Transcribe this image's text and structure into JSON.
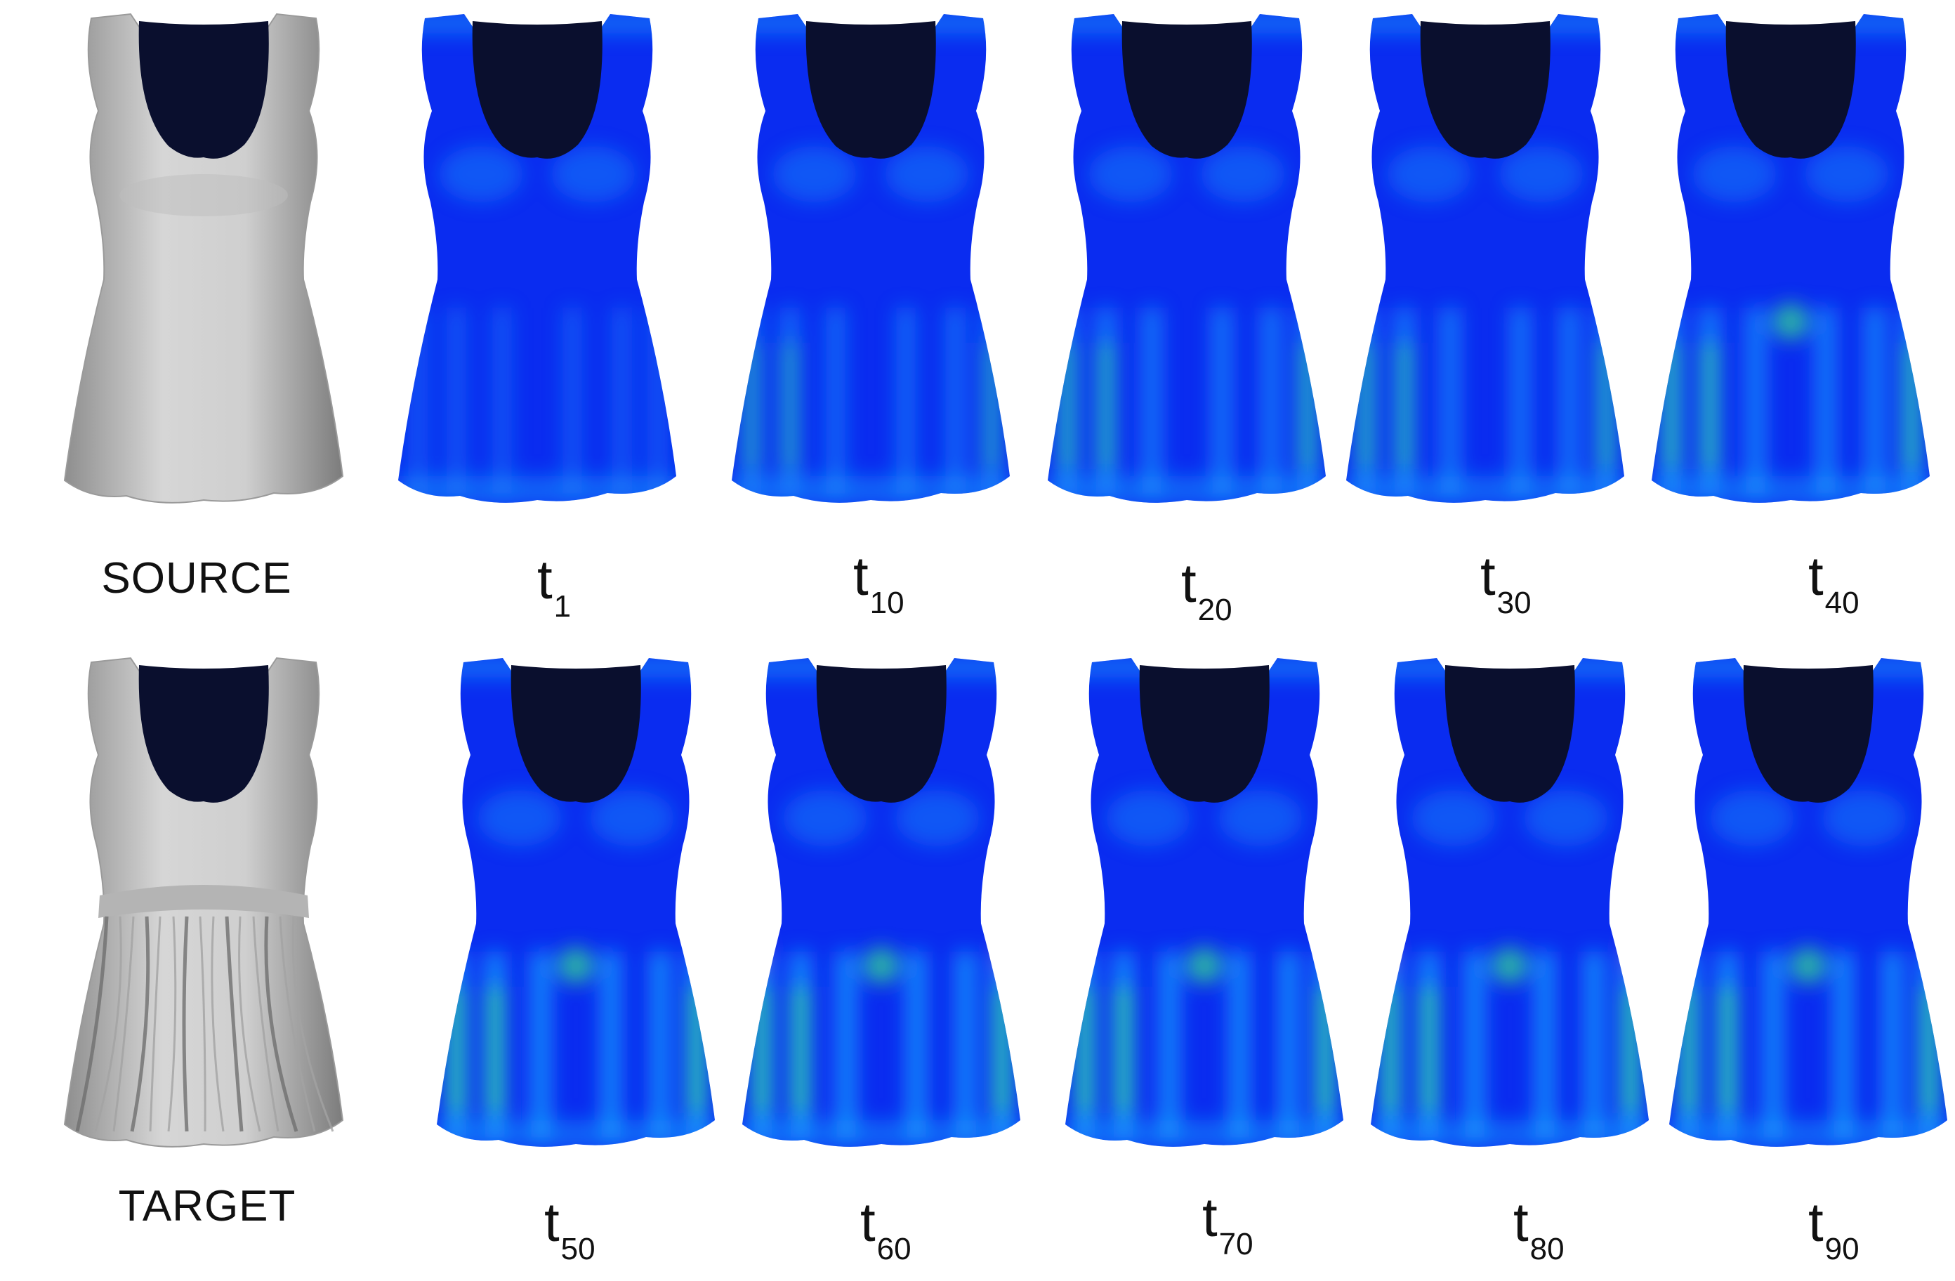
{
  "figure": {
    "rows": [
      {
        "reference": {
          "label": "SOURCE",
          "mesh": "smooth-dress",
          "shading": "gray"
        },
        "frames": [
          {
            "base": "t",
            "sub": "1",
            "heat": "low"
          },
          {
            "base": "t",
            "sub": "10",
            "heat": "mild"
          },
          {
            "base": "t",
            "sub": "20",
            "heat": "medium"
          },
          {
            "base": "t",
            "sub": "30",
            "heat": "medium"
          },
          {
            "base": "t",
            "sub": "40",
            "heat": "medium-high"
          }
        ]
      },
      {
        "reference": {
          "label": "TARGET",
          "mesh": "gathered-skirt-dress",
          "shading": "gray"
        },
        "frames": [
          {
            "base": "t",
            "sub": "50",
            "heat": "high"
          },
          {
            "base": "t",
            "sub": "60",
            "heat": "high"
          },
          {
            "base": "t",
            "sub": "70",
            "heat": "high"
          },
          {
            "base": "t",
            "sub": "80",
            "heat": "high"
          },
          {
            "base": "t",
            "sub": "90",
            "heat": "high"
          }
        ]
      }
    ],
    "colors": {
      "mesh_gray": "#c8c8c8",
      "neckline": "#0a0f2e",
      "heat_low": "#0a2cf0",
      "heat_mid": "#1aa8ff",
      "heat_high": "#38e88a",
      "heat_peak": "#f04a10"
    }
  }
}
